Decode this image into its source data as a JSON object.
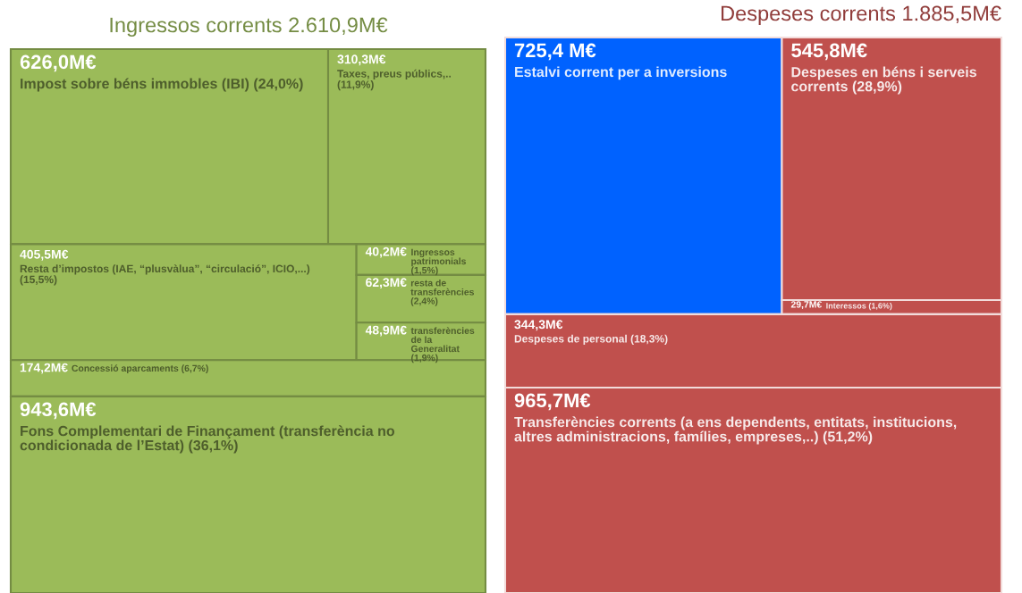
{
  "chart_data": [
    {
      "type": "other",
      "title": "Ingressos corrents 2.610,9M€",
      "categories": [
        "Impost sobre béns immobles (IBI) (24,0%)",
        "Taxes, preus públics,.. (11,9%)",
        "Resta d’impostos (IAE, “plusvàlua”, “circulació”, ICIO,...) (15,5%)",
        "Ingressos patrimonials (1,5%)",
        "resta de transferències (2,4%)",
        "transferències de la Generalitat (1,9%)",
        "Concessió aparcaments (6,7%)",
        "Fons Complementari de Finançament (transferència no condicionada de l’Estat) (36,1%)"
      ],
      "values": [
        626.0,
        310.3,
        405.5,
        40.2,
        62.3,
        48.9,
        174.2,
        943.6
      ],
      "value_labels": [
        "626,0M€",
        "310,3M€",
        "405,5M€",
        "40,2M€",
        "62,3M€",
        "48,9M€",
        "174,2M€",
        "943,6M€"
      ],
      "colors": [
        "#9bbb59",
        "#9bbb59",
        "#9bbb59",
        "#9bbb59",
        "#9bbb59",
        "#9bbb59",
        "#9bbb59",
        "#9bbb59"
      ]
    },
    {
      "type": "other",
      "title": "Despeses corrents 1.885,5M€",
      "categories": [
        "Estalvi corrent per a inversions",
        "Despeses en béns i serveis corrents (28,9%)",
        "Interessos (1,6%)",
        "Despeses de personal (18,3%)",
        "Transferències corrents (a ens dependents, entitats, institucions, altres administracions, famílies, empreses,..) (51,2%)"
      ],
      "values": [
        725.4,
        545.8,
        29.7,
        344.3,
        965.7
      ],
      "value_labels": [
        "725,4 M€",
        "545,8M€",
        "29,7M€",
        "344,3M€",
        "965,7M€"
      ],
      "colors": [
        "#0062ff",
        "#c0504d",
        "#c0504d",
        "#c0504d",
        "#c0504d"
      ]
    }
  ]
}
